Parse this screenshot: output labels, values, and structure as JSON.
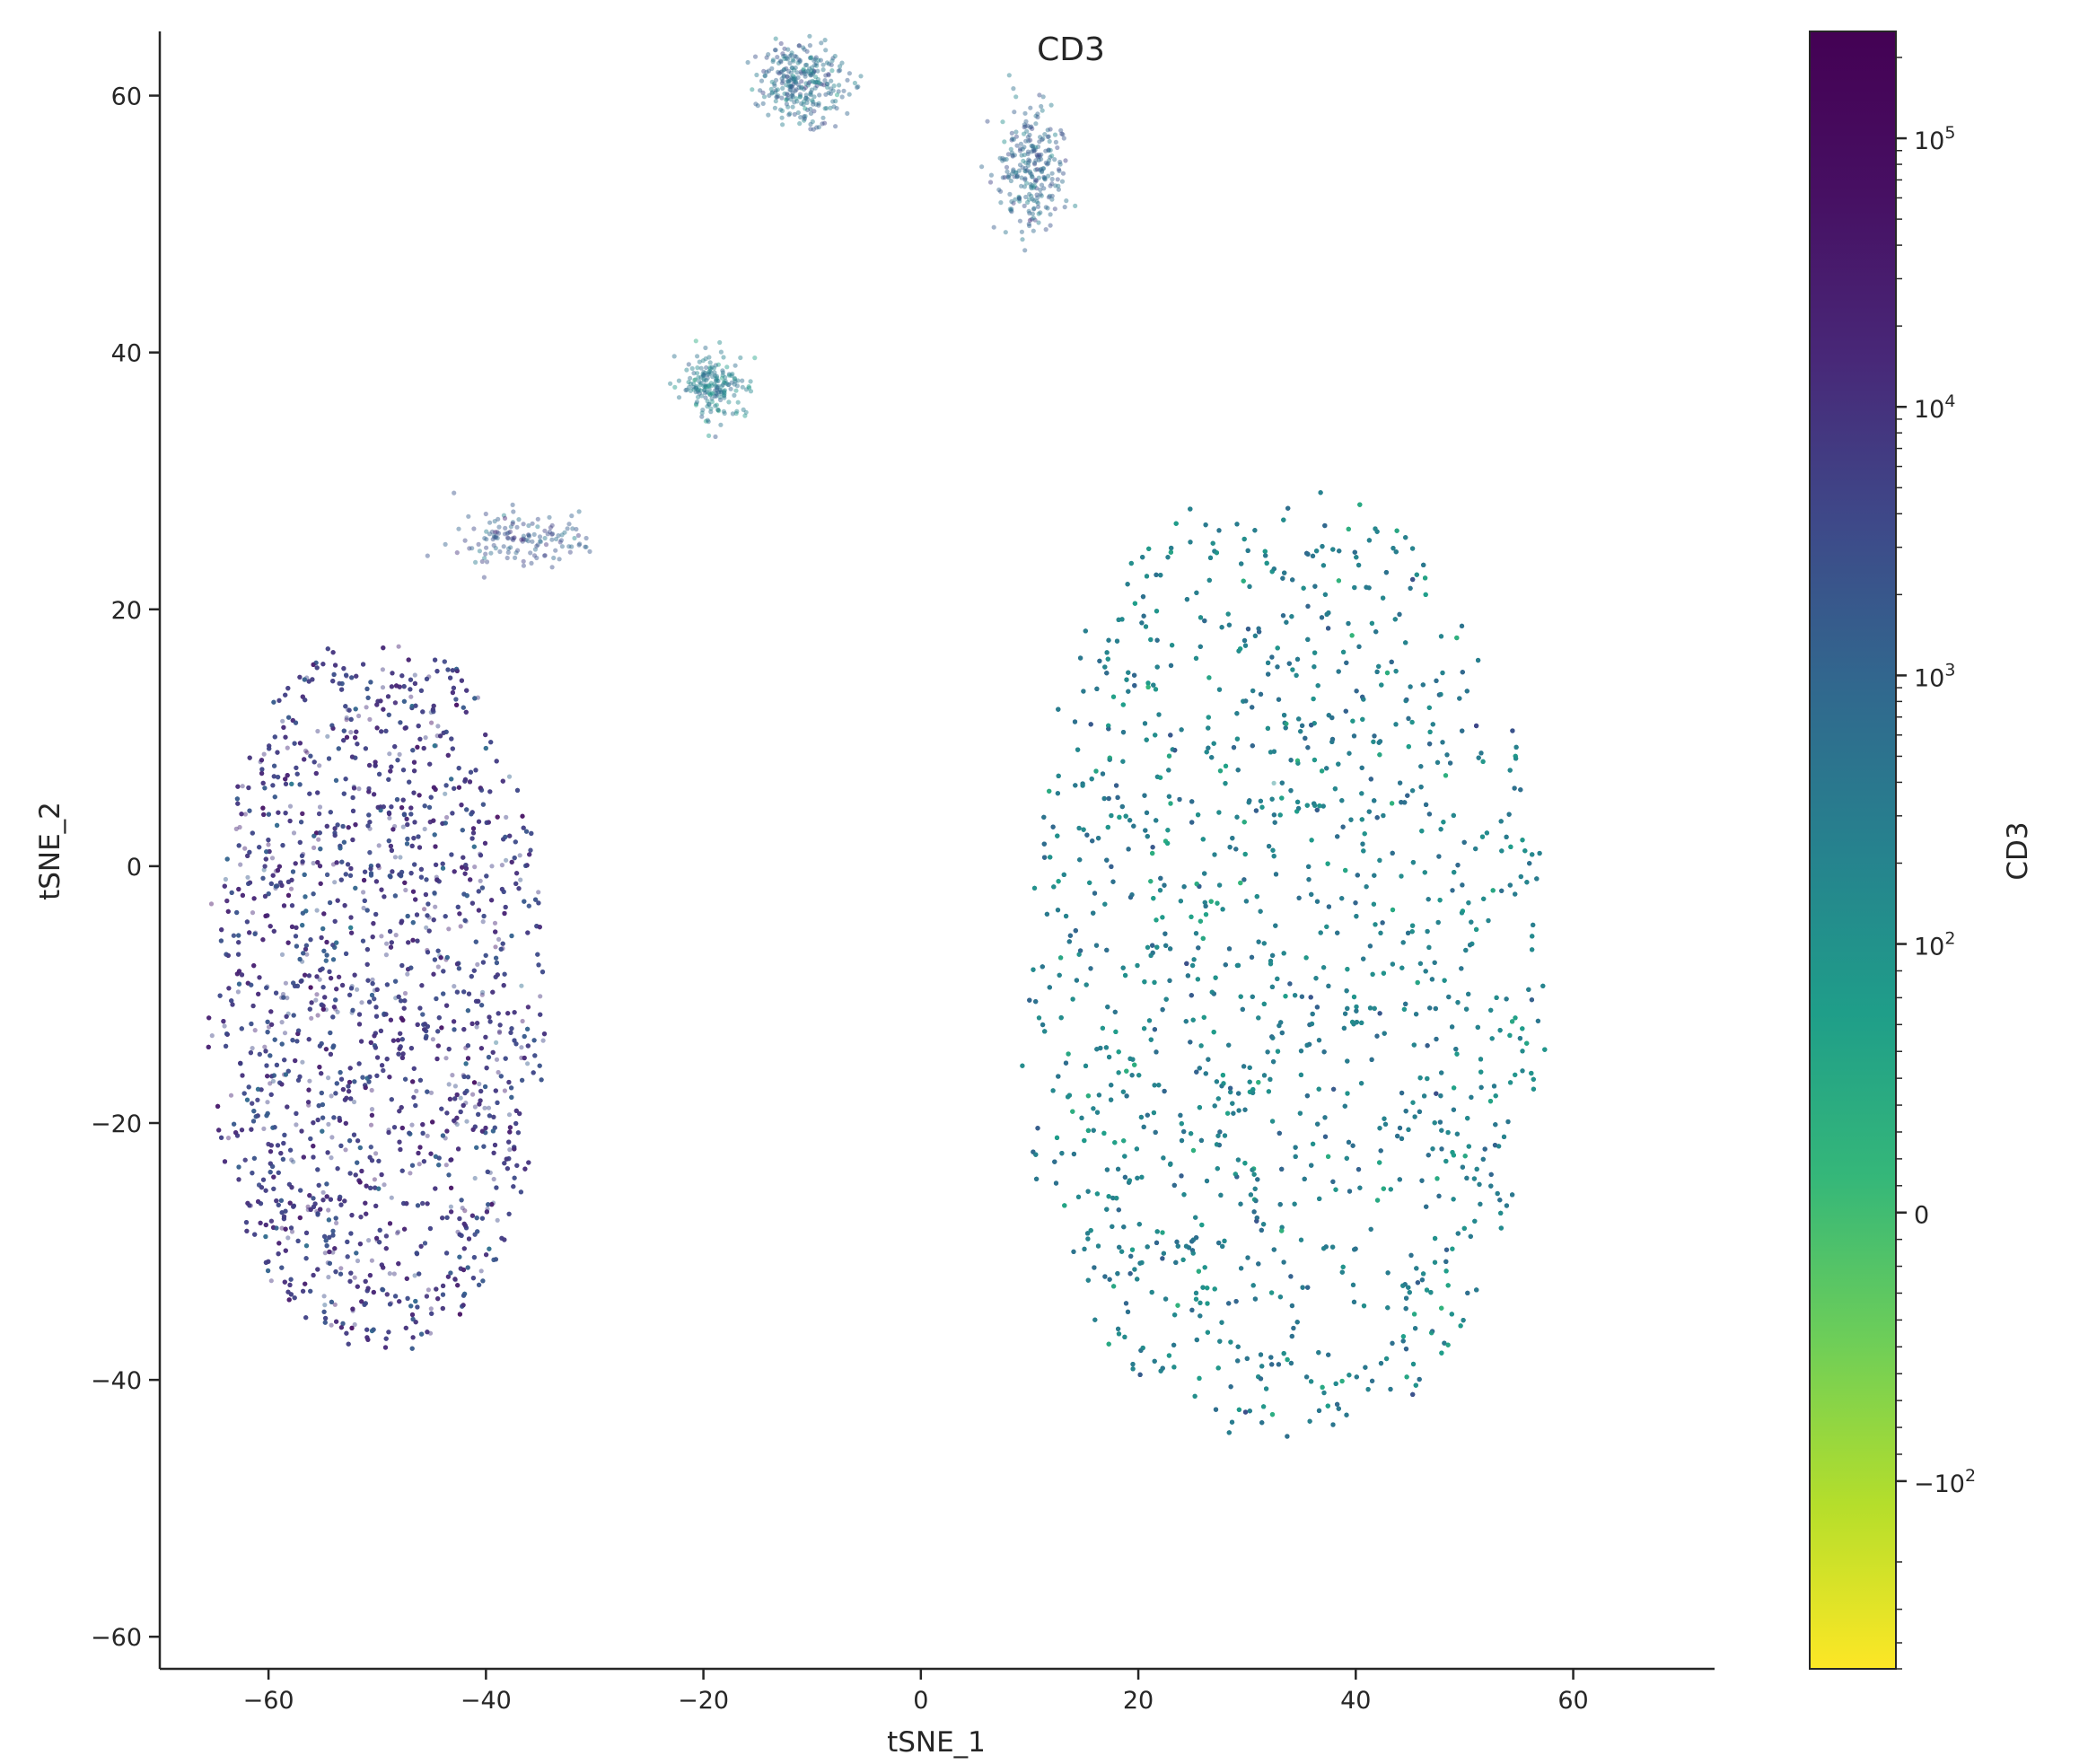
{
  "chart_data": {
    "type": "scatter",
    "title": "CD3",
    "xlabel": "tSNE_1",
    "ylabel": "tSNE_2",
    "xlim": [
      -70,
      73
    ],
    "ylim": [
      -62.5,
      65
    ],
    "x_ticks": [
      -60,
      -40,
      -20,
      0,
      20,
      40,
      60
    ],
    "y_ticks": [
      -60,
      -40,
      -20,
      0,
      20,
      40,
      60
    ],
    "x_tick_labels": [
      "−60",
      "−40",
      "−20",
      "0",
      "20",
      "40",
      "60"
    ],
    "y_tick_labels": [
      "−60",
      "−40",
      "−20",
      "0",
      "20",
      "40",
      "60"
    ],
    "grid": false,
    "colormap": "viridis_r",
    "colorbar": {
      "label": "CD3",
      "scale": "symlog",
      "range": [
        -500,
        250000
      ],
      "ticks": [
        {
          "value": 100000,
          "base": "10",
          "exp": "5"
        },
        {
          "value": 10000,
          "base": "10",
          "exp": "4"
        },
        {
          "value": 1000,
          "base": "10",
          "exp": "3"
        },
        {
          "value": 100,
          "base": "10",
          "exp": "2"
        },
        {
          "value": 0,
          "base": "0",
          "exp": ""
        },
        {
          "value": -100,
          "base": "−10",
          "exp": "2"
        }
      ]
    },
    "clusters": [
      {
        "center": [
          -50,
          -10
        ],
        "spread": [
          14,
          18
        ],
        "cd3": 6000
      },
      {
        "center": [
          33,
          -8
        ],
        "spread": [
          22,
          24
        ],
        "cd3": 250
      },
      {
        "center": [
          -11,
          61
        ],
        "spread": [
          2,
          1.5
        ],
        "cd3": 700
      },
      {
        "center": [
          10,
          54
        ],
        "spread": [
          1.5,
          2.5
        ],
        "cd3": 900
      },
      {
        "center": [
          -19,
          37.5
        ],
        "spread": [
          1.5,
          1.2
        ],
        "cd3": 300
      },
      {
        "center": [
          -37,
          25.5
        ],
        "spread": [
          3,
          1
        ],
        "cd3": 1800
      }
    ]
  }
}
